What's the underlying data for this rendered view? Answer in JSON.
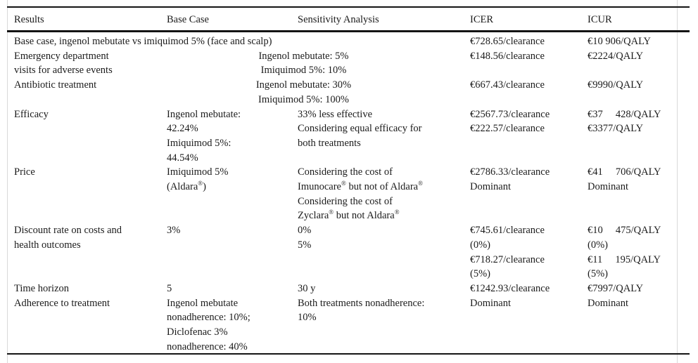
{
  "table": {
    "columns": [
      "Results",
      "Base Case",
      "Sensitivity Analysis",
      "ICER",
      "ICUR"
    ],
    "rows": [
      {
        "label": "Base case, ingenol mebutate vs imiquimod 5% (face and scalp)",
        "icer": "€728.65/clearance",
        "icur": "€10 906/QALY"
      },
      {
        "label": "Emergency department\nvisits for adverse events",
        "combined": "Ingenol mebutate: 5%\nImiquimod 5%: 10%",
        "icer": "€148.56/clearance",
        "icur": "€2224/QALY"
      },
      {
        "label": "Antibiotic treatment",
        "combined": "Ingenol mebutate: 30%\nImiquimod 5%: 100%",
        "icer": "€667.43/clearance",
        "icur": "€9990/QALY"
      },
      {
        "label": "Efficacy",
        "base_case": "Ingenol mebutate:\n42.24%\nImiquimod 5%:\n44.54%",
        "sensitivity": "33% less effective\nConsidering equal efficacy for\nboth treatments",
        "icer": "€2567.73/clearance\n€222.57/clearance",
        "icur": "€37     428/QALY\n€3377/QALY"
      },
      {
        "label": "Price",
        "base_case": "Imiquimod 5%\n(Aldara®)",
        "sensitivity": "Considering the cost of\nImunocare® but not of Aldara®\nConsidering the cost of\nZyclara® but not Aldara®",
        "icer": "€2786.33/clearance\nDominant",
        "icur": "€41     706/QALY\nDominant"
      },
      {
        "label": "Discount rate on costs and\nhealth outcomes",
        "base_case": "3%",
        "sensitivity": "0%\n5%",
        "icer": "€745.61/clearance\n(0%)\n€718.27/clearance\n(5%)",
        "icur": "€10     475/QALY\n(0%)\n€11     195/QALY\n(5%)"
      },
      {
        "label": "Time horizon",
        "base_case": "5",
        "sensitivity": "30 y",
        "icer": "€1242.93/clearance",
        "icur": "€7997/QALY"
      },
      {
        "label": "Adherence to treatment",
        "base_case": "Ingenol mebutate\nnonadherence: 10%;\nDiclofenac 3%\nnonadherence: 40%",
        "sensitivity": "Both treatments nonadherence:\n10%",
        "icer": "Dominant",
        "icur": "Dominant"
      }
    ]
  },
  "colors": {
    "rule": "#141414",
    "faint_line": "#d9d9d9",
    "text": "#1b1b1b",
    "background": "#ffffff"
  }
}
